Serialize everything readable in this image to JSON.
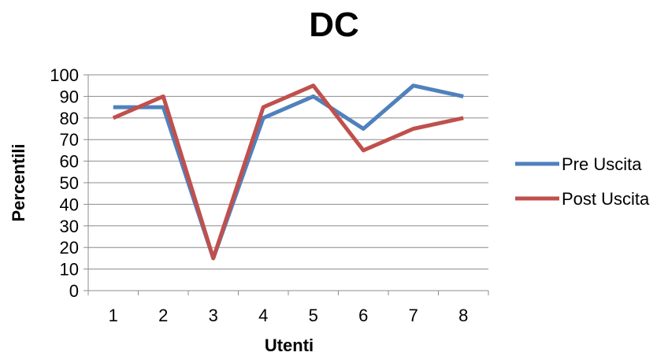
{
  "chart_data": {
    "type": "line",
    "title": "DC",
    "xlabel": "Utenti",
    "ylabel": "Percentili",
    "categories": [
      "1",
      "2",
      "3",
      "4",
      "5",
      "6",
      "7",
      "8"
    ],
    "ylim": [
      0,
      100
    ],
    "yticks": [
      0,
      10,
      20,
      30,
      40,
      50,
      60,
      70,
      80,
      90,
      100
    ],
    "grid": true,
    "legend_position": "right",
    "series": [
      {
        "name": "Pre Uscita",
        "color": "#4F81BD",
        "values": [
          85,
          85,
          15,
          80,
          90,
          75,
          95,
          90
        ]
      },
      {
        "name": "Post Uscita",
        "color": "#C0504D",
        "values": [
          80,
          90,
          15,
          85,
          95,
          65,
          75,
          80
        ]
      }
    ]
  }
}
